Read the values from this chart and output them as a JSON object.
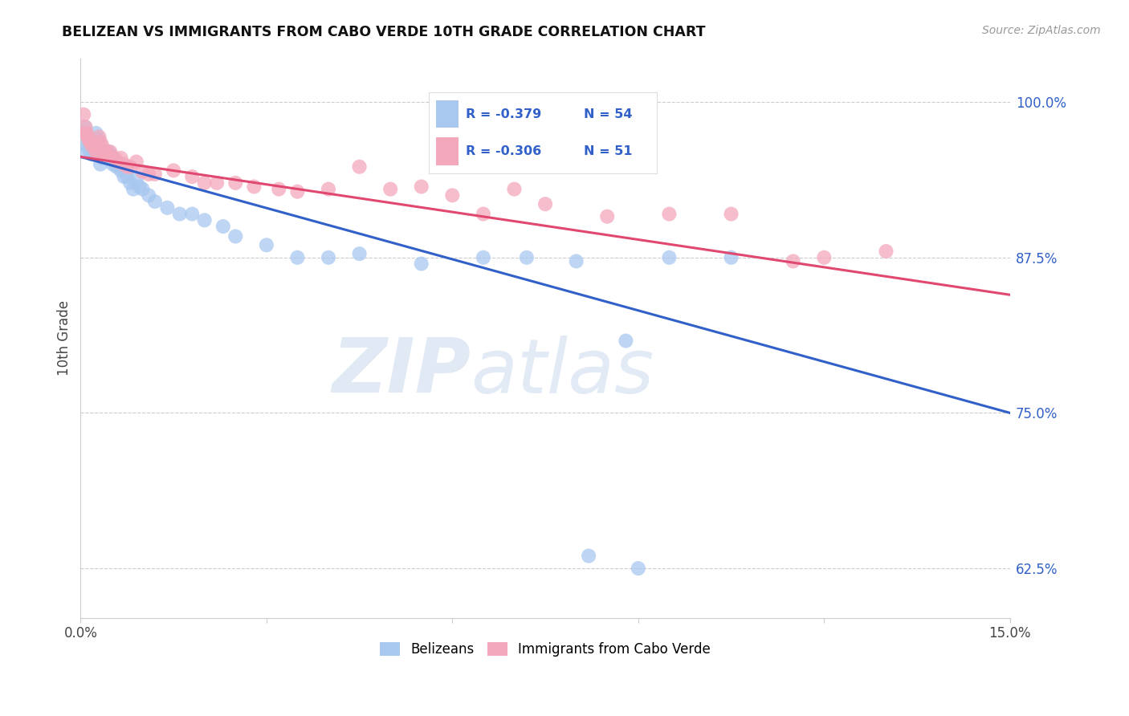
{
  "title": "BELIZEAN VS IMMIGRANTS FROM CABO VERDE 10TH GRADE CORRELATION CHART",
  "source": "Source: ZipAtlas.com",
  "ylabel": "10th Grade",
  "xlim": [
    0.0,
    15.0
  ],
  "ylim": [
    0.585,
    1.035
  ],
  "blue_color": "#a8c8f0",
  "pink_color": "#f4a8bc",
  "blue_line_color": "#3060c8",
  "pink_line_color": "#e04870",
  "legend_R_blue": "R = -0.379",
  "legend_N_blue": "N = 54",
  "legend_R_pink": "R = -0.306",
  "legend_N_pink": "N = 51",
  "legend_label_blue": "Belizeans",
  "legend_label_pink": "Immigrants from Cabo Verde",
  "watermark_zip": "ZIP",
  "watermark_atlas": "atlas",
  "blue_scatter_x": [
    0.05,
    0.08,
    0.1,
    0.12,
    0.15,
    0.18,
    0.2,
    0.22,
    0.25,
    0.28,
    0.3,
    0.32,
    0.35,
    0.38,
    0.4,
    0.42,
    0.45,
    0.48,
    0.5,
    0.52,
    0.55,
    0.58,
    0.6,
    0.65,
    0.7,
    0.75,
    0.8,
    0.85,
    0.9,
    0.95,
    1.0,
    1.1,
    1.2,
    1.4,
    1.6,
    1.8,
    2.0,
    2.3,
    2.5,
    3.0,
    3.5,
    4.0,
    4.5,
    5.5,
    6.5,
    7.2,
    8.0,
    8.8,
    9.5,
    10.5,
    0.07,
    0.13,
    8.2,
    9.0
  ],
  "blue_scatter_y": [
    0.96,
    0.975,
    0.965,
    0.97,
    0.96,
    0.958,
    0.965,
    0.958,
    0.975,
    0.97,
    0.958,
    0.95,
    0.955,
    0.958,
    0.96,
    0.955,
    0.96,
    0.958,
    0.955,
    0.95,
    0.952,
    0.948,
    0.95,
    0.945,
    0.94,
    0.94,
    0.935,
    0.93,
    0.938,
    0.932,
    0.93,
    0.925,
    0.92,
    0.915,
    0.91,
    0.91,
    0.905,
    0.9,
    0.892,
    0.885,
    0.875,
    0.875,
    0.878,
    0.87,
    0.875,
    0.875,
    0.872,
    0.808,
    0.875,
    0.875,
    0.98,
    0.968,
    0.635,
    0.625
  ],
  "pink_scatter_x": [
    0.05,
    0.08,
    0.1,
    0.12,
    0.15,
    0.18,
    0.22,
    0.25,
    0.28,
    0.3,
    0.32,
    0.35,
    0.38,
    0.4,
    0.42,
    0.45,
    0.48,
    0.55,
    0.6,
    0.65,
    0.7,
    0.75,
    0.8,
    0.9,
    1.0,
    1.1,
    1.2,
    1.5,
    1.8,
    2.0,
    2.2,
    2.5,
    2.8,
    3.2,
    3.5,
    4.0,
    4.5,
    5.0,
    5.5,
    6.0,
    6.5,
    7.0,
    7.5,
    8.5,
    9.5,
    10.5,
    11.5,
    12.0,
    13.0,
    0.07,
    0.13
  ],
  "pink_scatter_y": [
    0.99,
    0.98,
    0.975,
    0.972,
    0.968,
    0.965,
    0.965,
    0.96,
    0.958,
    0.972,
    0.968,
    0.965,
    0.96,
    0.958,
    0.96,
    0.958,
    0.96,
    0.955,
    0.952,
    0.955,
    0.95,
    0.948,
    0.948,
    0.952,
    0.944,
    0.942,
    0.942,
    0.945,
    0.94,
    0.935,
    0.935,
    0.935,
    0.932,
    0.93,
    0.928,
    0.93,
    0.948,
    0.93,
    0.932,
    0.925,
    0.91,
    0.93,
    0.918,
    0.908,
    0.91,
    0.91,
    0.872,
    0.875,
    0.88,
    0.975,
    0.97
  ],
  "blue_trend_x": [
    0.0,
    15.0
  ],
  "blue_trend_y": [
    0.956,
    0.75
  ],
  "pink_trend_x": [
    0.0,
    15.0
  ],
  "pink_trend_y": [
    0.956,
    0.845
  ],
  "ylabel_ticks": [
    0.625,
    0.75,
    0.875,
    1.0
  ],
  "ylabel_labels": [
    "62.5%",
    "75.0%",
    "87.5%",
    "100.0%"
  ],
  "xtick_positions": [
    0.0,
    3.0,
    6.0,
    9.0,
    12.0,
    15.0
  ],
  "xtick_labels": [
    "0.0%",
    "",
    "",
    "",
    "",
    "15.0%"
  ]
}
